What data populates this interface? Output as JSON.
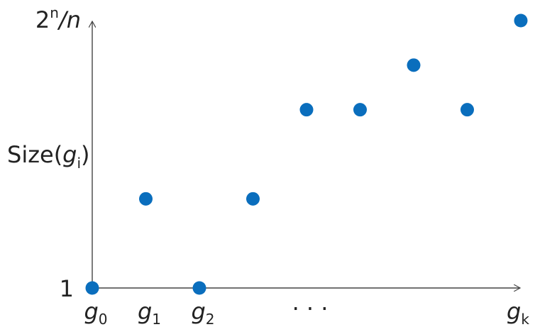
{
  "chart_data": {
    "type": "scatter",
    "title": "",
    "xlabel": "",
    "ylabel": "Size(g_i)",
    "ylabel_parts": {
      "base": "Size(",
      "var": "g",
      "sub": "i",
      "close": ")"
    },
    "x": [
      0,
      1,
      2,
      3,
      4,
      5,
      6,
      7,
      8
    ],
    "values": [
      1,
      2,
      1,
      2,
      3,
      3,
      3.5,
      3,
      4
    ],
    "ylim": [
      1,
      4
    ],
    "xlim": [
      0,
      8
    ],
    "y_ticks": [
      {
        "label": "1",
        "value": 1
      },
      {
        "label": "2^n/n",
        "value": 4
      }
    ],
    "y_top_tick_parts": {
      "base": "2",
      "sup": "n",
      "rest": "/n"
    },
    "x_ticks": [
      {
        "var": "g",
        "sub": "0",
        "position": 0
      },
      {
        "var": "g",
        "sub": "1",
        "position": 1
      },
      {
        "var": "g",
        "sub": "2",
        "position": 2
      },
      {
        "var": "g",
        "sub": "k",
        "position": 8
      }
    ],
    "x_ellipsis": {
      "label": "· · ·",
      "position": 4
    },
    "grid": false,
    "legend": "none",
    "point_color": "#0a6ebd",
    "axis_color": "#444444"
  }
}
